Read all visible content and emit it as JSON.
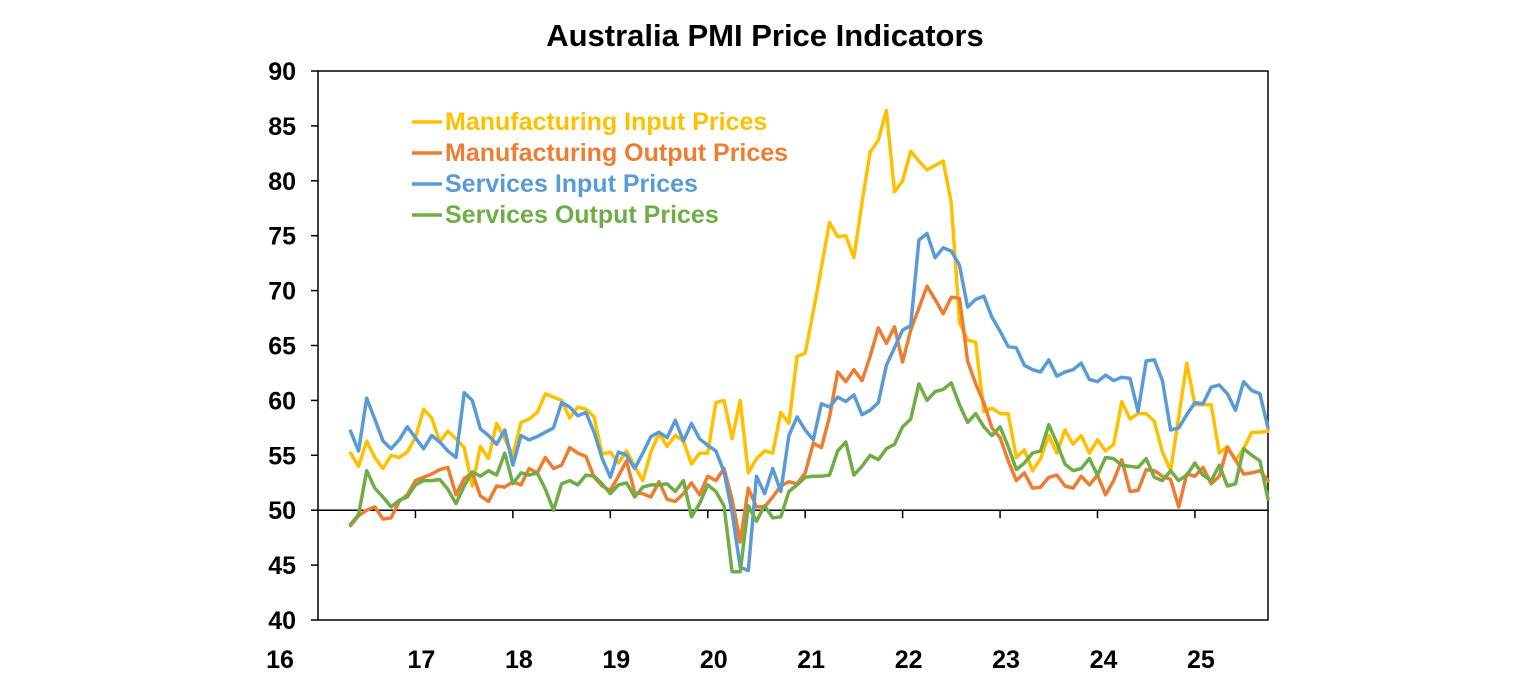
{
  "chart_data": {
    "type": "line",
    "title": "Australia PMI Price Indicators",
    "xlabel": "",
    "ylabel": "",
    "ylim": [
      40,
      90
    ],
    "yticks": [
      40,
      45,
      50,
      55,
      60,
      65,
      70,
      75,
      80,
      85,
      90
    ],
    "xlim": [
      "2016-01",
      "2025-10"
    ],
    "xtick_labels": [
      "16",
      "17",
      "18",
      "19",
      "20",
      "21",
      "22",
      "23",
      "24",
      "25"
    ],
    "reference_line": 50,
    "grid": false,
    "legend_position": "top-left",
    "x_start": "2016-05",
    "x_frequency": "monthly",
    "series": [
      {
        "name": "Manufacturing Input Prices",
        "color": "#FFC000",
        "values": [
          55.2,
          54.0,
          56.3,
          54.8,
          53.8,
          55.0,
          54.8,
          55.3,
          56.6,
          59.2,
          58.4,
          56.2,
          57.2,
          56.5,
          55.7,
          52.2,
          55.8,
          54.7,
          57.9,
          56.5,
          55.0,
          58.0,
          58.3,
          58.9,
          60.6,
          60.3,
          60.0,
          58.4,
          59.4,
          59.2,
          58.5,
          55.1,
          55.3,
          54.3,
          55.4,
          54.0,
          52.7,
          55.3,
          57.0,
          55.8,
          56.8,
          56.3,
          54.2,
          55.2,
          55.2,
          59.8,
          60.0,
          56.5,
          60.0,
          53.4,
          54.7,
          55.4,
          55.2,
          58.9,
          57.9,
          64.0,
          64.3,
          68.1,
          72.1,
          76.2,
          74.9,
          75.0,
          73.0,
          78.0,
          82.6,
          83.7,
          86.4,
          79.0,
          80.0,
          82.7,
          81.8,
          81.0,
          81.4,
          81.8,
          78.0,
          67.1,
          65.5,
          65.3,
          59.0,
          59.3,
          58.8,
          58.8,
          54.8,
          55.5,
          53.6,
          54.7,
          56.8,
          55.2,
          57.3,
          56.0,
          56.8,
          55.2,
          56.4,
          55.4,
          56.0,
          59.9,
          58.3,
          58.8,
          58.8,
          58.1,
          55.3,
          53.6,
          58.5,
          63.4,
          59.6,
          59.6,
          59.6,
          55.2,
          55.8,
          54.5,
          55.6,
          57.1,
          57.1,
          57.2
        ],
        "values_note": "approximate monthly readings, May 2016 to Oct 2025"
      },
      {
        "name": "Manufacturing Output Prices",
        "color": "#ED7D31",
        "values": [
          48.6,
          49.5,
          50.0,
          50.3,
          49.2,
          49.3,
          50.8,
          51.4,
          52.7,
          53.0,
          53.3,
          53.7,
          53.9,
          51.4,
          52.9,
          53.4,
          51.3,
          50.8,
          52.2,
          52.1,
          52.6,
          52.3,
          53.8,
          53.4,
          54.8,
          53.8,
          54.1,
          55.7,
          55.2,
          54.9,
          53.0,
          52.2,
          51.8,
          53.1,
          54.5,
          51.6,
          51.5,
          51.2,
          52.6,
          51.0,
          50.8,
          51.5,
          52.5,
          51.4,
          53.1,
          52.7,
          53.8,
          51.0,
          47.1,
          52.0,
          50.3,
          50.3,
          51.2,
          52.2,
          52.6,
          52.4,
          53.4,
          56.1,
          55.7,
          58.5,
          62.6,
          61.7,
          62.8,
          61.8,
          64.0,
          66.6,
          65.2,
          66.7,
          63.5,
          66.4,
          68.4,
          70.4,
          69.2,
          67.9,
          69.4,
          69.3,
          63.6,
          61.5,
          59.8,
          57.5,
          56.6,
          54.5,
          52.7,
          53.4,
          52.0,
          52.1,
          53.0,
          53.2,
          52.2,
          52.0,
          53.1,
          52.3,
          53.2,
          51.4,
          52.7,
          54.6,
          51.7,
          51.8,
          53.7,
          53.6,
          53.1,
          52.8,
          50.3,
          53.3,
          53.1,
          53.9,
          52.4,
          53.1,
          55.7,
          54.6,
          53.3,
          53.4,
          53.6,
          52.7
        ],
        "values_note": "approximate monthly readings, May 2016 to Oct 2025"
      },
      {
        "name": "Services Input Prices",
        "color": "#5B9BD5",
        "values": [
          57.2,
          55.4,
          60.2,
          58.3,
          56.3,
          55.6,
          56.4,
          57.6,
          56.6,
          55.6,
          56.8,
          56.2,
          55.4,
          54.8,
          60.7,
          60.0,
          57.4,
          56.8,
          56.0,
          57.3,
          54.1,
          56.8,
          56.4,
          56.7,
          57.1,
          57.5,
          59.8,
          59.4,
          58.6,
          58.9,
          57.1,
          54.7,
          53.0,
          55.3,
          55.0,
          53.8,
          55.2,
          56.7,
          57.1,
          56.6,
          58.2,
          56.3,
          57.9,
          56.5,
          55.9,
          55.4,
          53.5,
          49.8,
          44.8,
          44.5,
          53.1,
          51.5,
          53.8,
          51.7,
          56.8,
          58.5,
          57.3,
          56.4,
          59.7,
          59.4,
          60.3,
          59.9,
          60.5,
          58.7,
          59.1,
          59.8,
          63.2,
          64.8,
          66.4,
          66.8,
          74.6,
          75.2,
          73.0,
          73.9,
          73.6,
          72.3,
          68.5,
          69.2,
          69.5,
          67.6,
          66.3,
          64.9,
          64.8,
          63.2,
          62.8,
          62.6,
          63.7,
          62.2,
          62.6,
          62.8,
          63.4,
          61.9,
          61.7,
          62.3,
          61.8,
          62.1,
          62.0,
          59.0,
          63.6,
          63.7,
          61.8,
          57.3,
          57.5,
          58.7,
          59.8,
          59.7,
          61.2,
          61.4,
          60.6,
          59.1,
          61.7,
          60.9,
          60.6,
          57.5
        ],
        "values_note": "approximate monthly readings, May 2016 to Oct 2025"
      },
      {
        "name": "Services Output Prices",
        "color": "#70AD47",
        "values": [
          48.7,
          49.6,
          53.6,
          52.0,
          51.2,
          50.3,
          50.9,
          51.2,
          52.3,
          52.7,
          52.7,
          52.8,
          51.9,
          50.6,
          52.2,
          53.5,
          53.1,
          53.6,
          53.2,
          55.2,
          52.4,
          53.4,
          53.2,
          53.4,
          51.9,
          50.0,
          52.4,
          52.7,
          52.3,
          53.2,
          53.1,
          52.4,
          51.5,
          52.3,
          52.5,
          51.2,
          52.1,
          52.3,
          52.3,
          52.4,
          51.7,
          52.7,
          49.4,
          50.6,
          52.3,
          51.7,
          50.4,
          44.4,
          44.4,
          50.4,
          49.0,
          50.4,
          49.3,
          49.4,
          51.7,
          52.3,
          53.0,
          53.1,
          53.1,
          53.2,
          55.4,
          56.2,
          53.2,
          54.0,
          55.0,
          54.6,
          55.6,
          56.0,
          57.6,
          58.3,
          61.5,
          60.0,
          60.8,
          61.0,
          61.6,
          59.6,
          58.0,
          58.8,
          57.6,
          56.8,
          57.6,
          55.8,
          53.7,
          54.3,
          55.2,
          55.4,
          57.8,
          56.1,
          54.2,
          53.6,
          53.8,
          54.7,
          53.2,
          54.8,
          54.7,
          54.1,
          54.0,
          53.9,
          54.7,
          53.0,
          52.7,
          53.6,
          52.7,
          53.2,
          54.3,
          53.2,
          52.7,
          54.1,
          52.2,
          52.4,
          55.6,
          55.0,
          54.5,
          51.0
        ],
        "values_note": "approximate monthly readings, May 2016 to Oct 2025"
      }
    ]
  }
}
